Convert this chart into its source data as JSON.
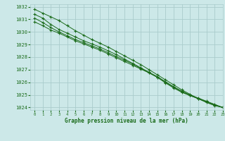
{
  "title": "Graphe pression niveau de la mer (hPa)",
  "background_color": "#cce8e8",
  "grid_color": "#aacccc",
  "line_color": "#1a6b1a",
  "marker_color": "#1a6b1a",
  "xlim": [
    -0.5,
    23
  ],
  "ylim": [
    1023.8,
    1032.2
  ],
  "yticks": [
    1024,
    1025,
    1026,
    1027,
    1028,
    1029,
    1030,
    1031,
    1032
  ],
  "xticks": [
    0,
    1,
    2,
    3,
    4,
    5,
    6,
    7,
    8,
    9,
    10,
    11,
    12,
    13,
    14,
    15,
    16,
    17,
    18,
    19,
    20,
    21,
    22,
    23
  ],
  "series": [
    [
      1031.8,
      1031.5,
      1031.2,
      1030.9,
      1030.5,
      1030.1,
      1029.75,
      1029.4,
      1029.1,
      1028.8,
      1028.45,
      1028.1,
      1027.75,
      1027.4,
      1027.0,
      1026.6,
      1026.2,
      1025.8,
      1025.4,
      1025.05,
      1024.7,
      1024.4,
      1024.15,
      1024.0
    ],
    [
      1031.4,
      1031.1,
      1030.6,
      1030.2,
      1029.9,
      1029.6,
      1029.3,
      1029.05,
      1028.8,
      1028.5,
      1028.2,
      1027.85,
      1027.5,
      1027.15,
      1026.8,
      1026.45,
      1026.05,
      1025.65,
      1025.3,
      1025.0,
      1024.75,
      1024.5,
      1024.25,
      1024.0
    ],
    [
      1031.1,
      1030.75,
      1030.35,
      1030.0,
      1029.7,
      1029.4,
      1029.15,
      1028.9,
      1028.65,
      1028.35,
      1028.05,
      1027.75,
      1027.45,
      1027.1,
      1026.75,
      1026.4,
      1026.0,
      1025.6,
      1025.25,
      1024.95,
      1024.7,
      1024.45,
      1024.2,
      1024.0
    ],
    [
      1030.8,
      1030.5,
      1030.15,
      1029.9,
      1029.6,
      1029.3,
      1029.05,
      1028.8,
      1028.55,
      1028.25,
      1027.95,
      1027.65,
      1027.35,
      1027.05,
      1026.75,
      1026.4,
      1025.95,
      1025.55,
      1025.2,
      1024.95,
      1024.7,
      1024.45,
      1024.2,
      1024.0
    ]
  ]
}
